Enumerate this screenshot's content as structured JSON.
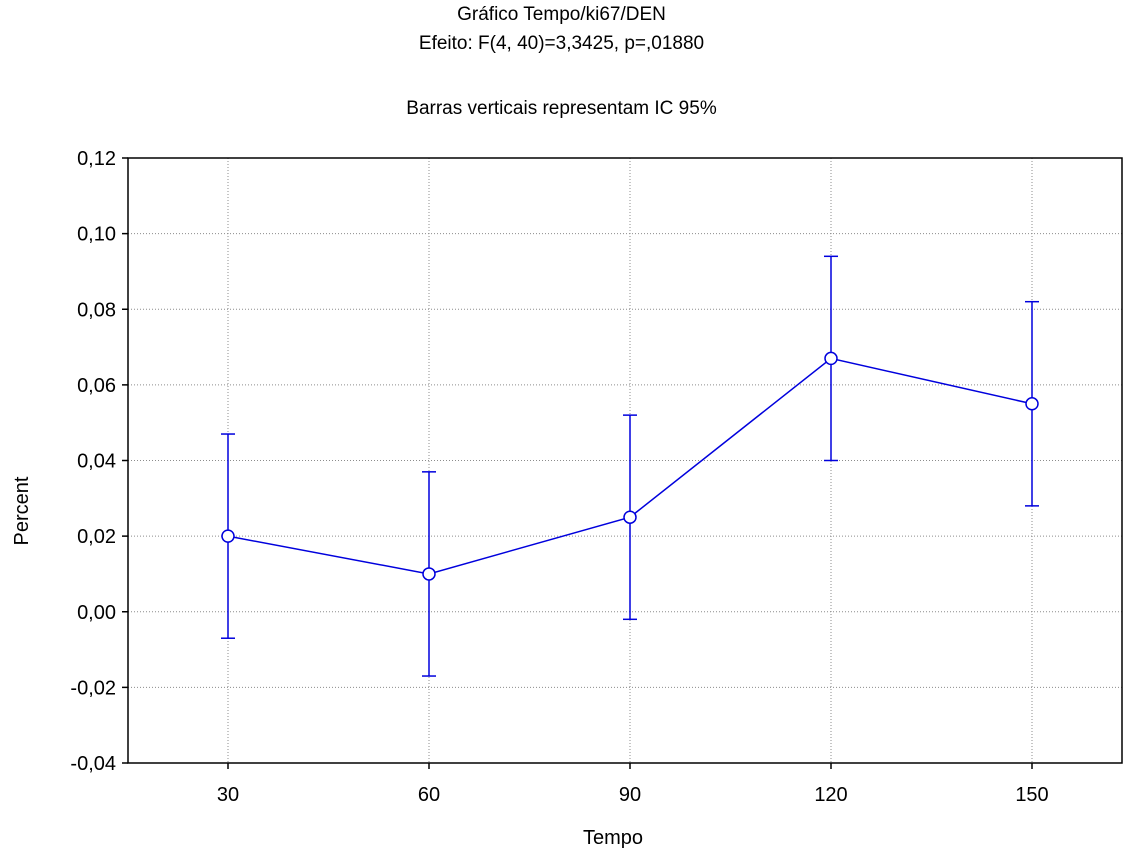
{
  "chart_data": {
    "type": "line",
    "title": "Gráfico Tempo/ki67/DEN",
    "subtitle": "Efeito: F(4, 40)=3,3425, p=,01880",
    "note": "Barras verticais representam IC 95%",
    "xlabel": "Tempo",
    "ylabel": "Percent",
    "categories": [
      "30",
      "60",
      "90",
      "120",
      "150"
    ],
    "y_tick_labels": [
      "-0,04",
      "-0,02",
      "0,00",
      "0,02",
      "0,04",
      "0,06",
      "0,08",
      "0,10",
      "0,12"
    ],
    "ylim": [
      -0.04,
      0.12
    ],
    "grid": true,
    "series": [
      {
        "values": [
          0.02,
          0.01,
          0.025,
          0.067,
          0.055
        ],
        "ci_lower": [
          -0.007,
          -0.017,
          -0.002,
          0.04,
          0.028
        ],
        "ci_upper": [
          0.047,
          0.037,
          0.052,
          0.094,
          0.082
        ],
        "color": "#0000dd"
      }
    ]
  }
}
